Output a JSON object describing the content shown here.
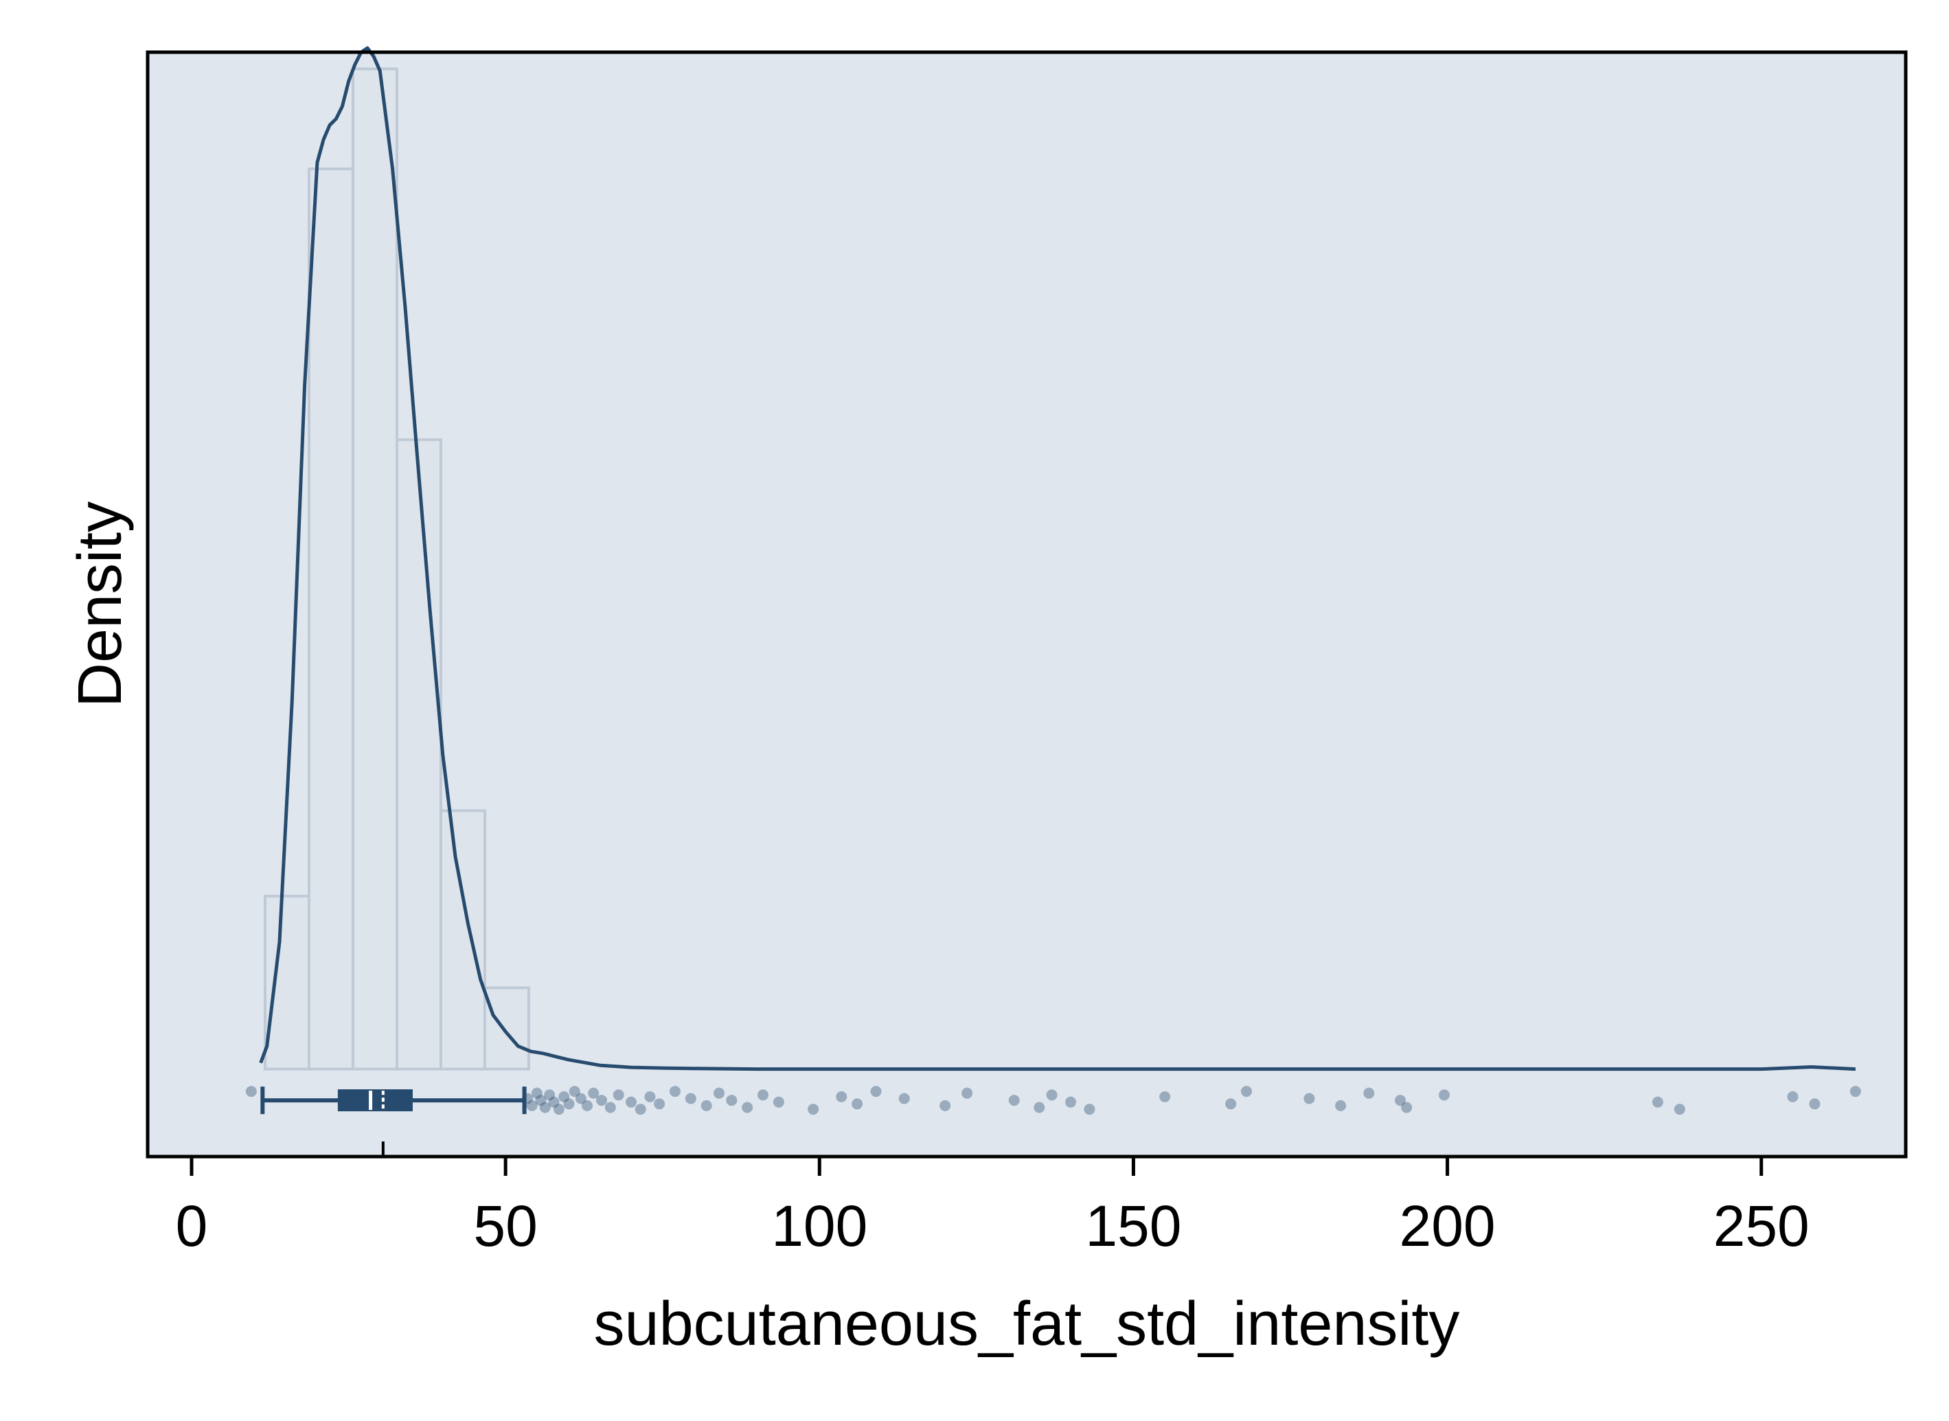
{
  "chart_data": {
    "type": "histogram",
    "xlabel": "subcutaneous_fat_std_intensity",
    "ylabel": "Density",
    "xlim": [
      -7,
      273
    ],
    "ylim": [
      -0.0042,
      0.0488
    ],
    "x_ticks": [
      0,
      50,
      100,
      150,
      200,
      250
    ],
    "x_tick_labels": [
      "0",
      "50",
      "100",
      "150",
      "200",
      "250"
    ],
    "y_ticks_shown": false,
    "grid": false,
    "colors": {
      "background": "#dfe6ee",
      "bar_fill": "#dde4ec",
      "bar_edge": "#bfcad6",
      "density_line": "#274b6e",
      "box": "#274b6e",
      "points": "#274b6e",
      "axis": "#000000"
    },
    "histogram": {
      "bin_edges": [
        11.7,
        18.7,
        25.7,
        32.7,
        39.7,
        46.7,
        53.7
      ],
      "values": [
        0.0083,
        0.0432,
        0.048,
        0.0302,
        0.0124,
        0.0039
      ]
    },
    "density_curve": {
      "x": [
        11,
        12,
        14,
        16,
        18,
        20,
        21,
        22,
        23,
        24,
        25,
        26,
        27,
        28,
        29,
        30,
        32,
        34,
        36,
        38,
        40,
        42,
        44,
        46,
        48,
        50,
        52,
        54,
        56,
        58,
        60,
        65,
        70,
        75,
        80,
        90,
        100,
        110,
        120,
        130,
        140,
        150,
        160,
        170,
        180,
        190,
        200,
        210,
        230,
        250,
        258,
        265
      ],
      "y": [
        0.0003,
        0.0011,
        0.0061,
        0.0177,
        0.0328,
        0.0435,
        0.0446,
        0.0453,
        0.0456,
        0.0462,
        0.0474,
        0.0482,
        0.0488,
        0.049,
        0.0486,
        0.0479,
        0.0432,
        0.0366,
        0.0292,
        0.0219,
        0.0151,
        0.0102,
        0.007,
        0.0043,
        0.0026,
        0.0018,
        0.0011,
        0.00085,
        0.00075,
        0.0006,
        0.00045,
        0.00018,
        8e-05,
        5e-05,
        3e-05,
        0.0,
        0.0,
        0.0,
        0.0,
        0.0,
        0.0,
        0.0,
        0.0,
        0.0,
        0.0,
        0.0,
        0.0,
        0.0,
        0.0,
        0.0,
        0.0001,
        0.0
      ]
    },
    "boxplot": {
      "whisker_low": 11.3,
      "q1": 23.5,
      "median": 28.5,
      "mean": 30.5,
      "q3": 35.0,
      "whisker_high": 53.0
    },
    "outliers": [
      9.5,
      53.5,
      54.2,
      55,
      55.6,
      56.3,
      57,
      57.7,
      58.5,
      59.3,
      60.1,
      61,
      62,
      63,
      64,
      65.3,
      66.7,
      68,
      70,
      71.5,
      73,
      74.5,
      77,
      79.5,
      82,
      84,
      86,
      88.5,
      91,
      93.5,
      99,
      103.5,
      106,
      109,
      113.5,
      120,
      123.5,
      131,
      135,
      137,
      140,
      143,
      155,
      165.5,
      168,
      178,
      183,
      187.5,
      192.5,
      193.5,
      199.5,
      233.5,
      237,
      255,
      258.5,
      265
    ]
  }
}
